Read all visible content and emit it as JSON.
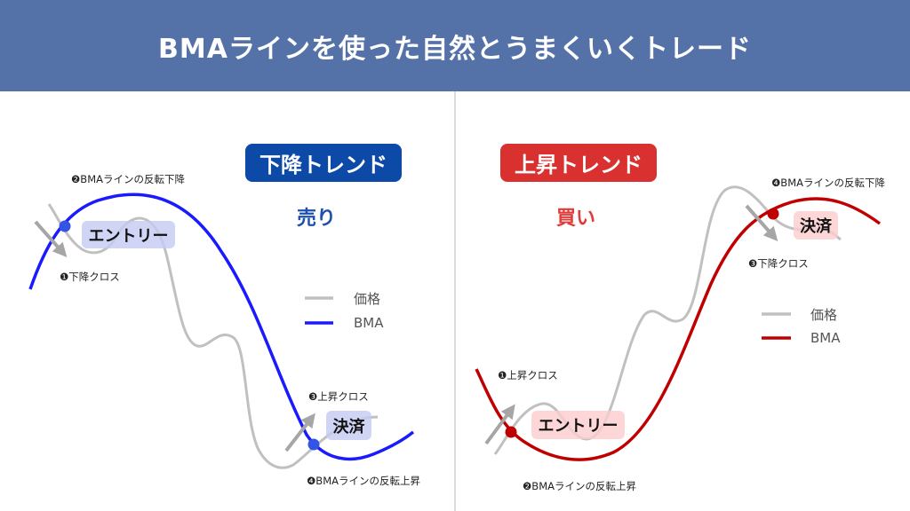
{
  "header": {
    "title": "BMAラインを使った自然とうまくいくトレード"
  },
  "colors": {
    "header_bg": "#5472a8",
    "down_accent": "#0d4aa8",
    "up_accent": "#d93030",
    "bma_down": "#1a1aff",
    "bma_up": "#c00000",
    "price": "#bdbdbd"
  },
  "left": {
    "badge": "下降トレンド",
    "action": "売り",
    "entry": "エントリー",
    "exit": "決済",
    "labels": {
      "l1": "❶下降クロス",
      "l2": "❷BMAラインの反転下降",
      "l3": "❸上昇クロス",
      "l4": "❹BMAラインの反転上昇"
    },
    "legend": {
      "price": "価格",
      "bma": "BMA"
    }
  },
  "right": {
    "badge": "上昇トレンド",
    "action": "買い",
    "entry": "エントリー",
    "exit": "決済",
    "labels": {
      "l1": "❶上昇クロス",
      "l2": "❷BMAラインの反転上昇",
      "l3": "❸下降クロス",
      "l4": "❹BMAラインの反転下降"
    },
    "legend": {
      "price": "価格",
      "bma": "BMA"
    }
  }
}
